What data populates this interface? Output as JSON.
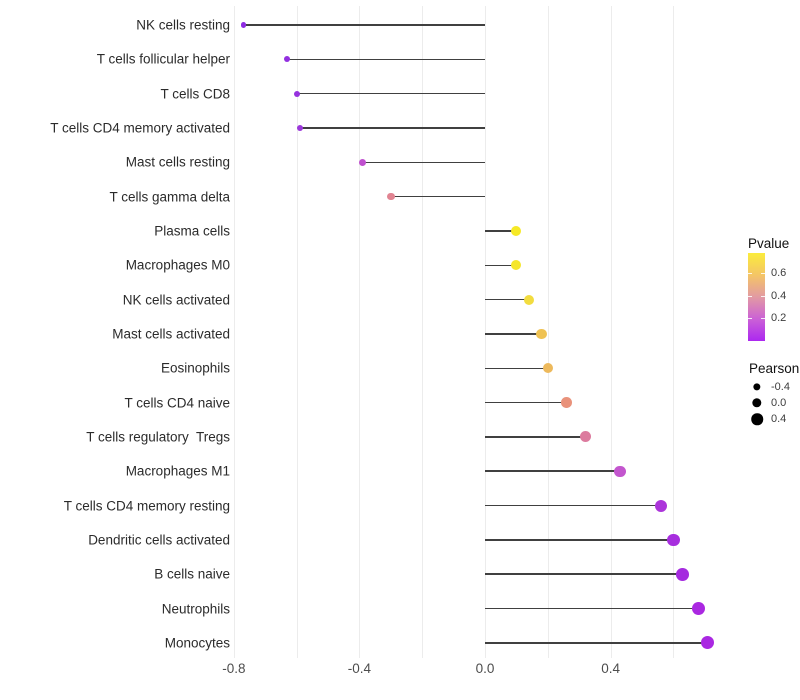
{
  "chart_data": {
    "type": "lollipop",
    "title": "",
    "xlabel": "",
    "ylabel": "",
    "x_axis": {
      "tick_values": [
        -0.8,
        -0.4,
        0.0,
        0.4
      ],
      "tick_labels": [
        "-0.8",
        "-0.4",
        "0.0",
        "0.4"
      ],
      "gridline_values": [
        -0.8,
        -0.6,
        -0.4,
        -0.2,
        0.0,
        0.2,
        0.4,
        0.6
      ],
      "range": [
        -0.88,
        0.79
      ],
      "baseline": 0.0
    },
    "points": [
      {
        "label": "NK cells resting",
        "pearson": -0.77,
        "pvalue_approx": 0.02,
        "color": "#8E2BE2"
      },
      {
        "label": "T cells follicular helper",
        "pearson": -0.63,
        "pvalue_approx": 0.04,
        "color": "#9230E0"
      },
      {
        "label": "T cells CD8",
        "pearson": -0.6,
        "pvalue_approx": 0.05,
        "color": "#9632DE"
      },
      {
        "label": "T cells CD4 memory activated",
        "pearson": -0.59,
        "pvalue_approx": 0.06,
        "color": "#9C38DB"
      },
      {
        "label": "Mast cells resting",
        "pearson": -0.39,
        "pvalue_approx": 0.17,
        "color": "#C050CF"
      },
      {
        "label": "T cells gamma delta",
        "pearson": -0.3,
        "pvalue_approx": 0.36,
        "color": "#E18492"
      },
      {
        "label": "Plasma cells",
        "pearson": 0.1,
        "pvalue_approx": 0.73,
        "color": "#F6E926"
      },
      {
        "label": "Macrophages M0",
        "pearson": 0.1,
        "pvalue_approx": 0.72,
        "color": "#F5E62A"
      },
      {
        "label": "NK cells activated",
        "pearson": 0.14,
        "pvalue_approx": 0.64,
        "color": "#F2DC3F"
      },
      {
        "label": "Mast cells activated",
        "pearson": 0.18,
        "pvalue_approx": 0.55,
        "color": "#EFC253"
      },
      {
        "label": "Eosinophils",
        "pearson": 0.2,
        "pvalue_approx": 0.5,
        "color": "#EDB95C"
      },
      {
        "label": "T cells CD4 naive",
        "pearson": 0.26,
        "pvalue_approx": 0.42,
        "color": "#E9927B"
      },
      {
        "label": "T cells regulatory  Tregs",
        "pearson": 0.32,
        "pvalue_approx": 0.3,
        "color": "#DC7B9E"
      },
      {
        "label": "Macrophages M1",
        "pearson": 0.43,
        "pvalue_approx": 0.18,
        "color": "#C356CE"
      },
      {
        "label": "T cells CD4 memory resting",
        "pearson": 0.56,
        "pvalue_approx": 0.09,
        "color": "#AC35DA"
      },
      {
        "label": "Dendritic cells activated",
        "pearson": 0.6,
        "pvalue_approx": 0.07,
        "color": "#A72EDE"
      },
      {
        "label": "B cells naive",
        "pearson": 0.63,
        "pvalue_approx": 0.06,
        "color": "#A52BDF"
      },
      {
        "label": "Neutrophils",
        "pearson": 0.68,
        "pvalue_approx": 0.04,
        "color": "#AA28E1"
      },
      {
        "label": "Monocytes",
        "pearson": 0.71,
        "pvalue_approx": 0.03,
        "color": "#AA28E2"
      }
    ],
    "legend": {
      "pvalue": {
        "title": "Pvalue",
        "tick_values": [
          0.6,
          0.4,
          0.2
        ],
        "tick_labels": [
          "0.6",
          "0.4",
          "0.2"
        ],
        "range": [
          0.0,
          0.775
        ],
        "gradient_top_to_bottom": [
          "#FBEC3C",
          "#F4C566",
          "#E29AA3",
          "#CB61D6",
          "#AC28F0"
        ]
      },
      "pearson": {
        "title": "Pearson",
        "entries": [
          {
            "label": "-0.4",
            "value": -0.4
          },
          {
            "label": "0.0",
            "value": 0.0
          },
          {
            "label": "0.4",
            "value": 0.4
          }
        ],
        "dot_color": "#000000"
      }
    },
    "styles": {
      "segment_color": "#404040",
      "grid_color": "#ECECEC",
      "axis_text_color": "#4D4D4D",
      "label_color": "#2B2B2B",
      "background": "#FFFFFF"
    }
  }
}
